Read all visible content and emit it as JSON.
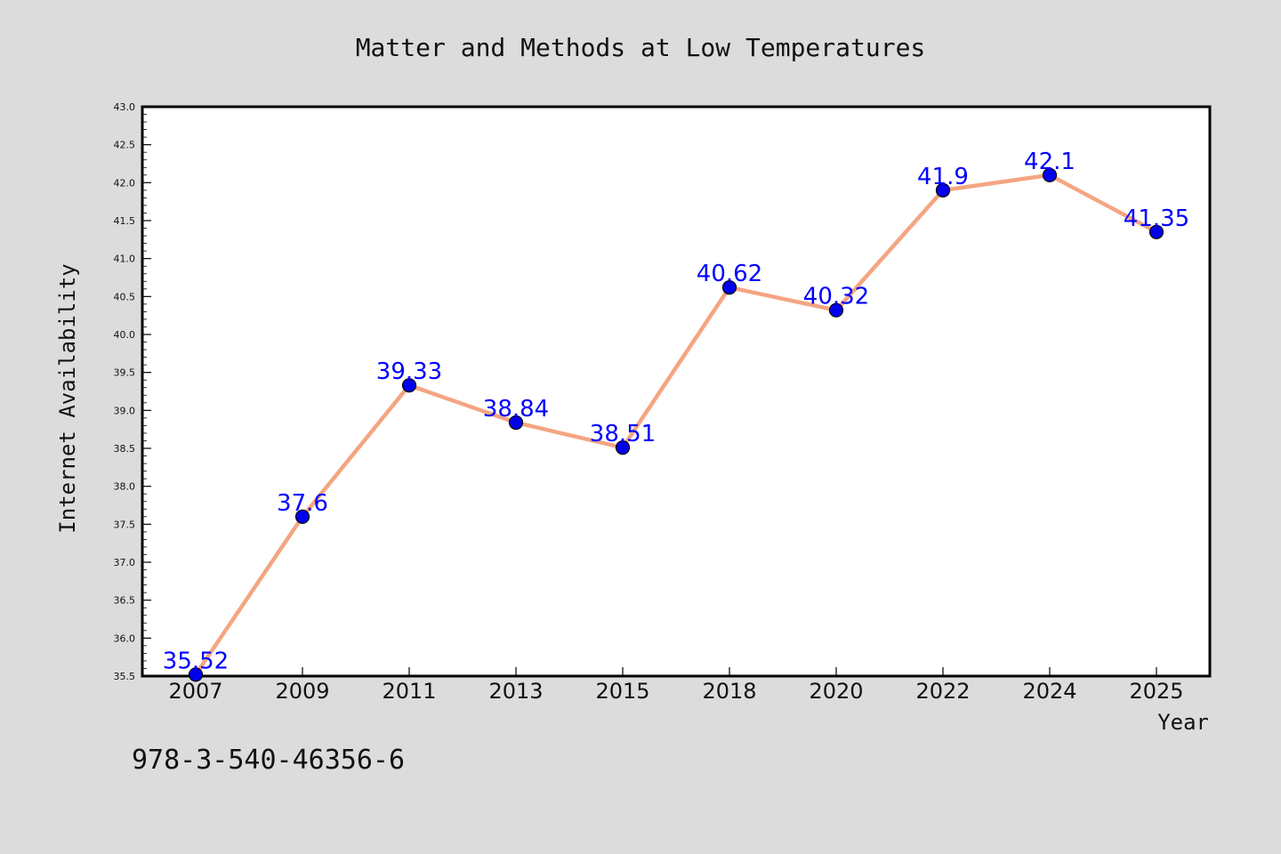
{
  "chart_data": {
    "type": "line",
    "title": "Matter and Methods at Low Temperatures",
    "xlabel": "Year",
    "ylabel": "Internet Availability",
    "categories": [
      "2007",
      "2009",
      "2011",
      "2013",
      "2015",
      "2018",
      "2020",
      "2022",
      "2024",
      "2025"
    ],
    "series": [
      {
        "values": [
          35.52,
          37.6,
          39.33,
          38.84,
          38.51,
          40.62,
          40.32,
          41.9,
          42.1,
          41.35
        ],
        "line_color": "#f4a582",
        "marker_color": "#0000ee"
      }
    ],
    "data_labels": [
      "35.52",
      "37.6",
      "39.33",
      "38.84",
      "38.51",
      "40.62",
      "40.32",
      "41.9",
      "42.1",
      "41.35"
    ],
    "ylim": [
      35.5,
      43.0
    ],
    "yticks": [
      "35.5",
      "36.0",
      "36.5",
      "37.0",
      "37.5",
      "38.0",
      "38.5",
      "39.0",
      "39.5",
      "40.0",
      "40.5",
      "41.0",
      "41.5",
      "42.0",
      "42.5",
      "43.0"
    ],
    "grid": false,
    "legend": false
  },
  "footnote": "978-3-540-46356-6",
  "colors": {
    "background": "#dcdcdc",
    "plot_background": "#ffffff",
    "data_label": "#0000ff"
  }
}
